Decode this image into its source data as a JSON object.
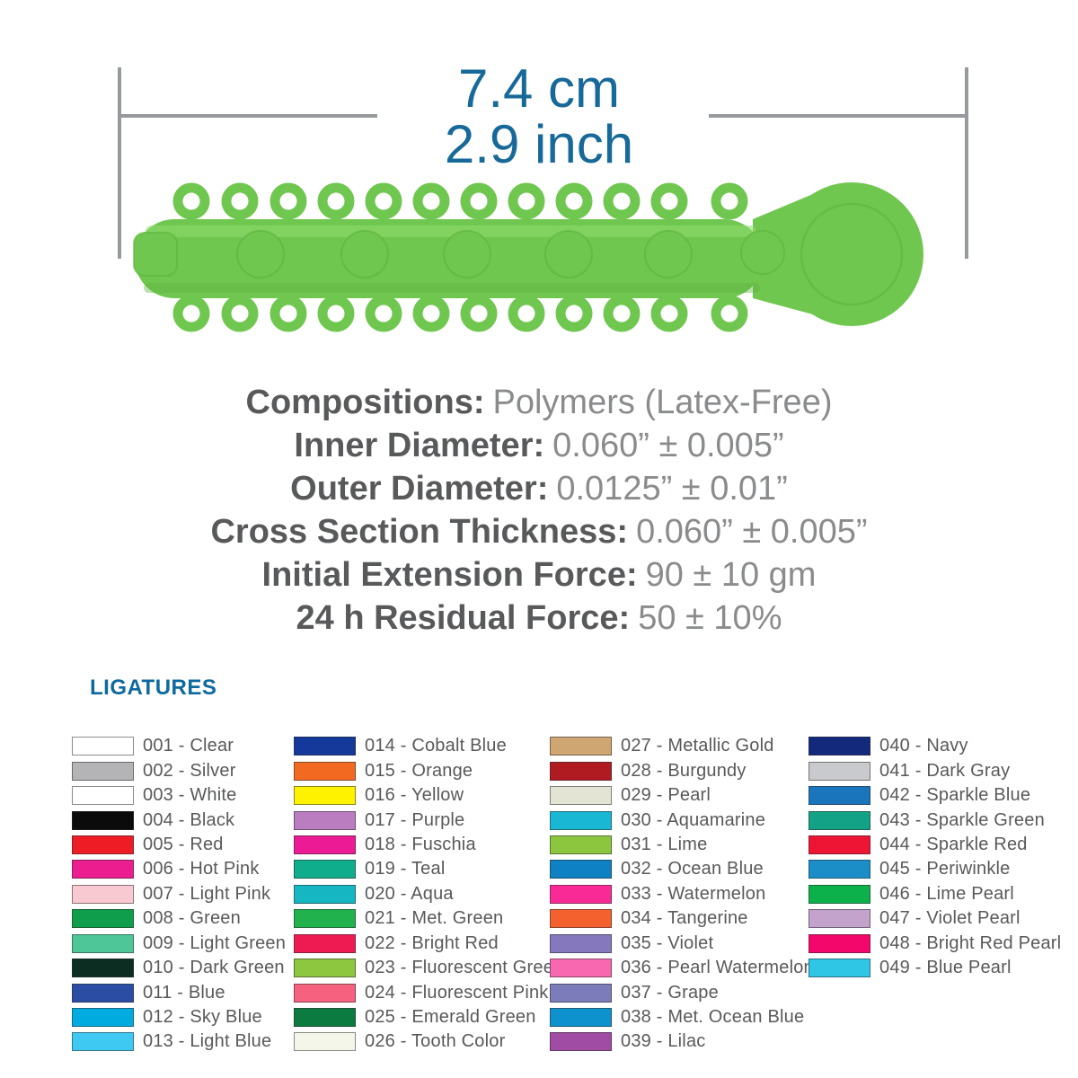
{
  "dimensions": {
    "metric": "7.4 cm",
    "imperial": "2.9 inch"
  },
  "specs": [
    {
      "label": "Compositions:",
      "value": "Polymers (Latex-Free)"
    },
    {
      "label": "Inner Diameter:",
      "value": "0.060” ± 0.005”"
    },
    {
      "label": "Outer Diameter:",
      "value": "0.0125” ± 0.01”"
    },
    {
      "label": "Cross Section Thickness:",
      "value": "0.060” ± 0.005”"
    },
    {
      "label": "Initial Extension Force:",
      "value": "90 ± 10 gm"
    },
    {
      "label": "24 h Residual Force:",
      "value": "50 ± 10%"
    }
  ],
  "ligatures_heading": "LIGATURES",
  "ligature_columns": [
    [
      {
        "label": "001 - Clear",
        "color": "#ffffff"
      },
      {
        "label": "002 - Silver",
        "color": "#b4b4b6"
      },
      {
        "label": "003 - White",
        "color": "#ffffff"
      },
      {
        "label": "004 - Black",
        "color": "#0b0b0b"
      },
      {
        "label": "005 - Red",
        "color": "#ee1c25"
      },
      {
        "label": "006 - Hot Pink",
        "color": "#ec1d8f"
      },
      {
        "label": "007 - Light Pink",
        "color": "#f9c9d1"
      },
      {
        "label": "008 - Green",
        "color": "#0f9e4b"
      },
      {
        "label": "009 - Light Green",
        "color": "#4fc697"
      },
      {
        "label": "010 - Dark Green",
        "color": "#0b2d22"
      },
      {
        "label": "011 - Blue",
        "color": "#2c4da4"
      },
      {
        "label": "012 - Sky Blue",
        "color": "#00acdf"
      },
      {
        "label": "013 - Light Blue",
        "color": "#3ec9f2"
      }
    ],
    [
      {
        "label": "014 - Cobalt Blue",
        "color": "#14399b"
      },
      {
        "label": "015 - Orange",
        "color": "#f26a22"
      },
      {
        "label": "016 - Yellow",
        "color": "#fef200"
      },
      {
        "label": "017 - Purple",
        "color": "#b97dc0"
      },
      {
        "label": "018 - Fuschia",
        "color": "#ed1a95"
      },
      {
        "label": "019 - Teal",
        "color": "#10ad8c"
      },
      {
        "label": "020 - Aqua",
        "color": "#16b6c3"
      },
      {
        "label": "021 - Met. Green",
        "color": "#21b24e"
      },
      {
        "label": "022 - Bright Red",
        "color": "#ee1a52"
      },
      {
        "label": "023 - Fluorescent Green",
        "color": "#8dc63f"
      },
      {
        "label": "024 - Fluorescent Pink",
        "color": "#f6617f"
      },
      {
        "label": "025 - Emerald Green",
        "color": "#0b7b40"
      },
      {
        "label": "026 - Tooth Color",
        "color": "#f4f6ea"
      }
    ],
    [
      {
        "label": "027 - Metallic Gold",
        "color": "#cfa571"
      },
      {
        "label": "028 - Burgundy",
        "color": "#b01b22"
      },
      {
        "label": "029 - Pearl",
        "color": "#e3e4d4"
      },
      {
        "label": "030 - Aquamarine",
        "color": "#19b7d3"
      },
      {
        "label": "031 - Lime",
        "color": "#8cc63e"
      },
      {
        "label": "032 - Ocean Blue",
        "color": "#0e81c4"
      },
      {
        "label": "033 - Watermelon",
        "color": "#f92a96"
      },
      {
        "label": "034 - Tangerine",
        "color": "#f4612e"
      },
      {
        "label": "035 - Violet",
        "color": "#8678bc"
      },
      {
        "label": "036 - Pearl Watermelon",
        "color": "#f868b0"
      },
      {
        "label": "037 - Grape",
        "color": "#7d7cba"
      },
      {
        "label": "038 - Met. Ocean Blue",
        "color": "#0e92cd"
      },
      {
        "label": "039 - Lilac",
        "color": "#a04ba4"
      }
    ],
    [
      {
        "label": "040 - Navy",
        "color": "#13297b"
      },
      {
        "label": "041 - Dark Gray",
        "color": "#c9cacd"
      },
      {
        "label": "042 - Sparkle Blue",
        "color": "#1b75bc"
      },
      {
        "label": "043 - Sparkle Green",
        "color": "#14a286"
      },
      {
        "label": "044 - Sparkle Red",
        "color": "#ee1433"
      },
      {
        "label": "045 - Periwinkle",
        "color": "#1b8ec8"
      },
      {
        "label": "046 - Lime Pearl",
        "color": "#0cb14b"
      },
      {
        "label": "047 - Violet Pearl",
        "color": "#c3a3cc"
      },
      {
        "label": "048 - Bright Red Pearl",
        "color": "#f4076b"
      },
      {
        "label": "049 - Blue Pearl",
        "color": "#2ec6e4"
      }
    ]
  ],
  "colors": {
    "accent_dimension_blue": "#17699a",
    "accent_heading_blue": "#0e699e",
    "dimension_line_gray": "#97999c",
    "spec_label_gray": "#58595b",
    "spec_value_gray": "#8a8b8d",
    "product_green": "#70c750",
    "product_green_dark": "#5cb23c",
    "product_green_light": "#8fdb70"
  }
}
